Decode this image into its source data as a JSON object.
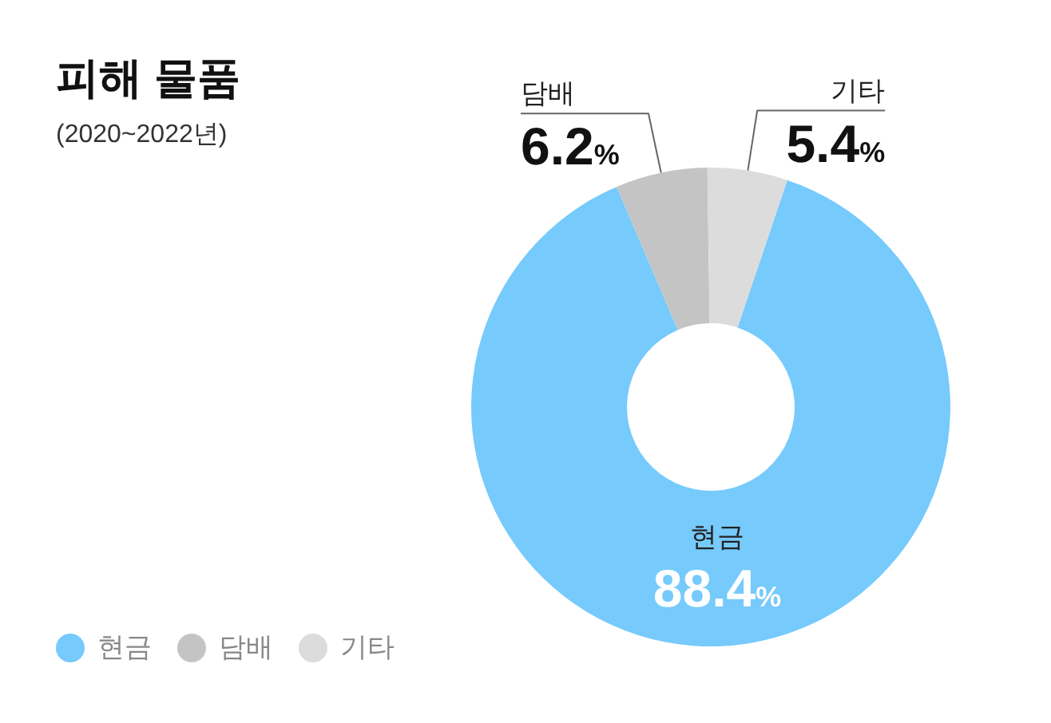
{
  "chart_data": {
    "type": "donut",
    "title": "피해 물품",
    "subtitle": "(2020~2022년)",
    "categories": [
      "현금",
      "담배",
      "기타"
    ],
    "values": [
      88.4,
      6.2,
      5.4
    ],
    "colors": [
      "#76cafc",
      "#c4c4c4",
      "#dcdcdc"
    ],
    "value_labels": [
      "88.4%",
      "6.2%",
      "5.4%"
    ],
    "legend": "bottom left"
  }
}
